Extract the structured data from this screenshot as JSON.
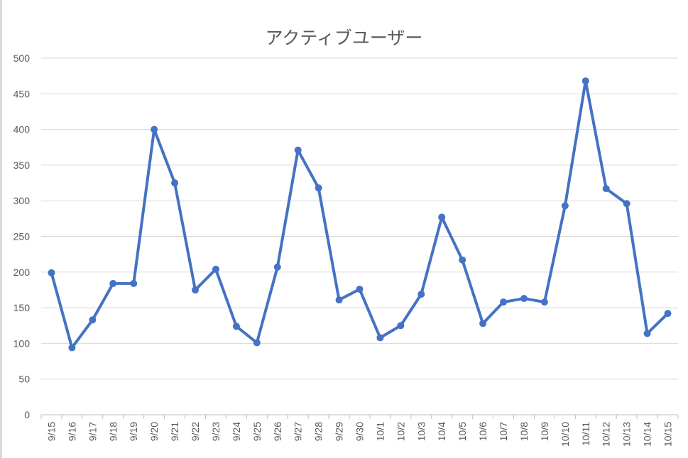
{
  "chart_data": {
    "type": "line",
    "title": "アクティブユーザー",
    "xlabel": "",
    "ylabel": "",
    "ylim": [
      0,
      500
    ],
    "yticks": [
      0,
      50,
      100,
      150,
      200,
      250,
      300,
      350,
      400,
      450,
      500
    ],
    "grid": true,
    "legend": "none",
    "color": "#4472C4",
    "categories": [
      "9/15",
      "9/16",
      "9/17",
      "9/18",
      "9/19",
      "9/20",
      "9/21",
      "9/22",
      "9/23",
      "9/24",
      "9/25",
      "9/26",
      "9/27",
      "9/28",
      "9/29",
      "9/30",
      "10/1",
      "10/2",
      "10/3",
      "10/4",
      "10/5",
      "10/6",
      "10/7",
      "10/8",
      "10/9",
      "10/10",
      "10/11",
      "10/12",
      "10/13",
      "10/14",
      "10/15"
    ],
    "values": [
      199,
      94,
      133,
      184,
      184,
      400,
      325,
      175,
      204,
      124,
      101,
      207,
      371,
      318,
      161,
      176,
      108,
      125,
      169,
      277,
      217,
      128,
      158,
      163,
      158,
      293,
      468,
      317,
      296,
      114,
      142
    ]
  }
}
